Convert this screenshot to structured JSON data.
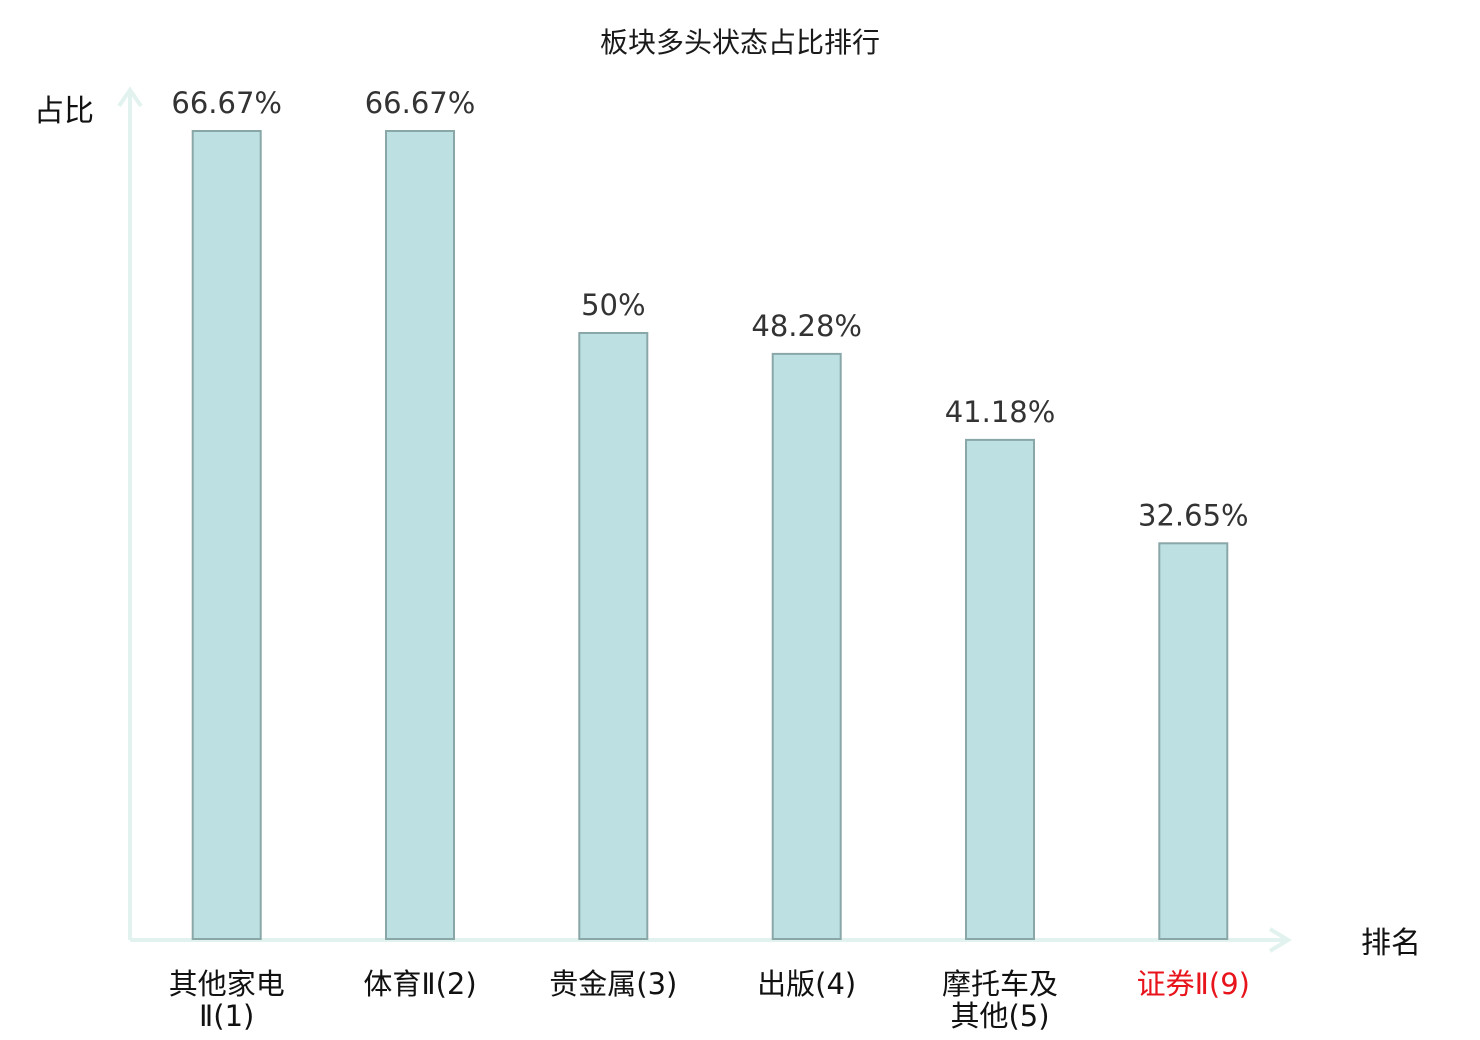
{
  "chart_data": {
    "type": "bar",
    "title": "板块多头状态占比排行",
    "xlabel": "排名",
    "ylabel": "占比",
    "categories": [
      [
        "其他家电",
        "Ⅱ(1)"
      ],
      [
        "体育Ⅱ(2)"
      ],
      [
        "贵金属(3)"
      ],
      [
        "出版(4)"
      ],
      [
        "摩托车及",
        "其他(5)"
      ],
      [
        "证券Ⅱ(9)"
      ]
    ],
    "values": [
      66.67,
      66.67,
      50,
      48.28,
      41.18,
      32.65
    ],
    "value_labels": [
      "66.67%",
      "66.67%",
      "50%",
      "48.28%",
      "41.18%",
      "32.65%"
    ],
    "highlight_index": 5,
    "ylim": [
      0,
      66.67
    ],
    "grid": false,
    "legend": "none",
    "colors": {
      "bar_fill": "#bde0e3",
      "bar_stroke": "#8aa7a8",
      "axis": "#e2f2ef",
      "value_text": "#333333",
      "label_text": "#111111",
      "highlight_text": "#e8141b"
    }
  }
}
